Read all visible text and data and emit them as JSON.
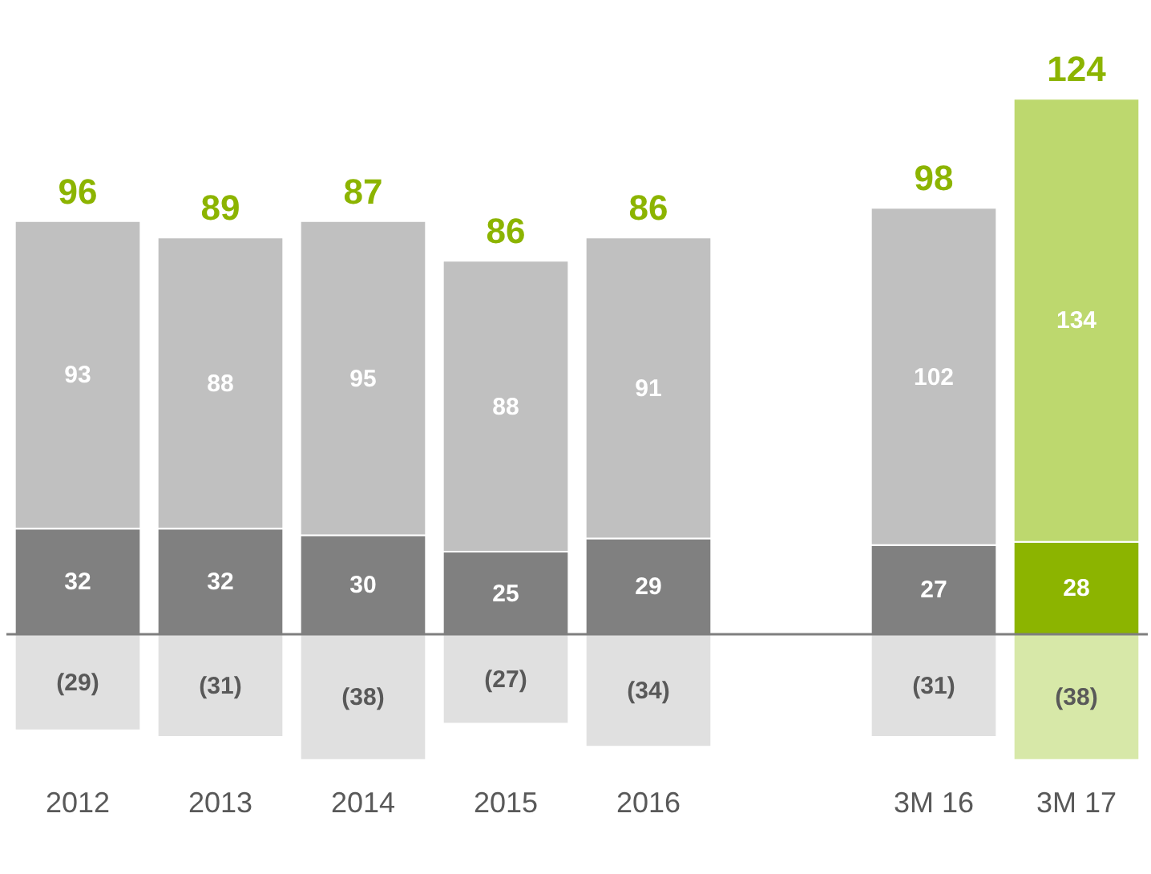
{
  "chart_data": {
    "type": "bar",
    "stacked": true,
    "categories": [
      "2012",
      "2013",
      "2014",
      "2015",
      "2016",
      null,
      "3M 16",
      "3M 17"
    ],
    "series": [
      {
        "values": [
          32,
          32,
          30,
          25,
          29,
          null,
          27,
          28
        ],
        "colors": [
          "#808080",
          "#808080",
          "#808080",
          "#808080",
          "#808080",
          null,
          "#808080",
          "#8cb400"
        ],
        "value_labels": [
          "32",
          "32",
          "30",
          "25",
          "29",
          null,
          "27",
          "28"
        ]
      },
      {
        "values": [
          93,
          88,
          95,
          88,
          91,
          null,
          102,
          134
        ],
        "colors": [
          "#c0c0c0",
          "#c0c0c0",
          "#c0c0c0",
          "#c0c0c0",
          "#c0c0c0",
          null,
          "#c0c0c0",
          "#bdd86e"
        ],
        "value_labels": [
          "93",
          "88",
          "95",
          "88",
          "91",
          null,
          "102",
          "134"
        ]
      },
      {
        "values": [
          -29,
          -31,
          -38,
          -27,
          -34,
          null,
          -31,
          -38
        ],
        "colors": [
          "#e0e0e0",
          "#e0e0e0",
          "#e0e0e0",
          "#e0e0e0",
          "#e0e0e0",
          null,
          "#e0e0e0",
          "#d7e8a8"
        ],
        "value_labels": [
          "(29)",
          "(31)",
          "(38)",
          "(27)",
          "(34)",
          null,
          "(31)",
          "(38)"
        ]
      }
    ],
    "totals": [
      "96",
      "89",
      "87",
      "86",
      "86",
      null,
      "98",
      "124"
    ],
    "grid": false
  }
}
